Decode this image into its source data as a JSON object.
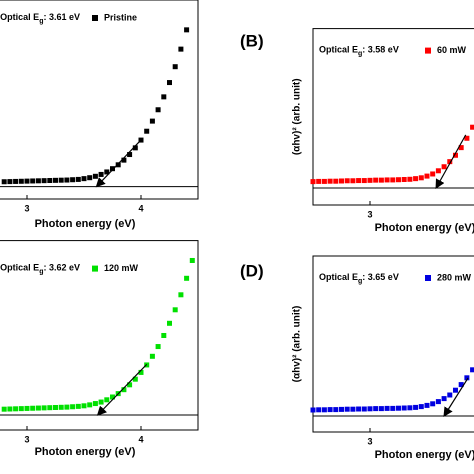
{
  "chart_data": [
    {
      "type": "scatter",
      "annotation": {
        "text": "Optical E",
        "sub": "g",
        "rest": ": 3.61 eV"
      },
      "xlabel": "Photon energy (eV)",
      "xlim": [
        2.75,
        4.5
      ],
      "ylim": [
        -8,
        120
      ],
      "xticks": [
        3,
        4
      ],
      "hline": 0,
      "series": [
        {
          "name": "Pristine",
          "color": "#000000",
          "x": [
            2.8,
            2.85,
            2.9,
            2.95,
            3.0,
            3.05,
            3.1,
            3.15,
            3.2,
            3.25,
            3.3,
            3.35,
            3.4,
            3.45,
            3.5,
            3.55,
            3.6,
            3.65,
            3.7,
            3.75,
            3.8,
            3.85,
            3.9,
            3.95,
            4.0,
            4.05,
            4.1,
            4.15,
            4.2,
            4.25,
            4.3,
            4.35,
            4.4
          ],
          "values": [
            3.1,
            3.2,
            3.3,
            3.4,
            3.5,
            3.6,
            3.7,
            3.8,
            3.9,
            4.0,
            4.1,
            4.2,
            4.4,
            4.6,
            5.1,
            5.7,
            6.6,
            7.8,
            9.4,
            11.5,
            14.0,
            17.0,
            20.6,
            24.9,
            29.9,
            35.6,
            42.1,
            49.4,
            57.7,
            66.9,
            77.1,
            88.4,
            100.8
          ]
        }
      ],
      "arrow": {
        "x": [
          4.0,
          3.61
        ],
        "y": [
          30,
          0
        ]
      }
    },
    {
      "type": "scatter",
      "panel": "(B)",
      "annotation": {
        "text": "Optical E",
        "sub": "g",
        "rest": ": 3.58 eV"
      },
      "xlabel": "Photon energy (eV)",
      "ylabel": "(αhv)² (arb. unit)",
      "xlim": [
        2.5,
        3.93
      ],
      "ylim": [
        -8,
        75
      ],
      "xticks": [
        3
      ],
      "hline": 0,
      "series": [
        {
          "name": "60 mW",
          "color": "#ff0000",
          "x": [
            2.5,
            2.55,
            2.6,
            2.65,
            2.7,
            2.75,
            2.8,
            2.85,
            2.9,
            2.95,
            3.0,
            3.05,
            3.1,
            3.15,
            3.2,
            3.25,
            3.3,
            3.35,
            3.4,
            3.45,
            3.5,
            3.55,
            3.6,
            3.65,
            3.7,
            3.75,
            3.8,
            3.85,
            3.9
          ],
          "values": [
            3.0,
            3.1,
            3.1,
            3.2,
            3.2,
            3.3,
            3.4,
            3.4,
            3.5,
            3.5,
            3.6,
            3.7,
            3.7,
            3.8,
            3.8,
            3.9,
            4.0,
            4.1,
            4.4,
            4.8,
            5.6,
            6.6,
            8.1,
            10.0,
            12.4,
            15.4,
            19.0,
            23.4,
            28.6
          ]
        }
      ],
      "arrow": {
        "x": [
          3.84,
          3.58
        ],
        "y": [
          25,
          0
        ]
      }
    },
    {
      "type": "scatter",
      "annotation": {
        "text": "Optical E",
        "sub": "g",
        "rest": ": 3.62 eV"
      },
      "xlabel": "Photon energy (eV)",
      "xlim": [
        2.75,
        4.5
      ],
      "ylim": [
        -8,
        93
      ],
      "xticks": [
        3,
        4
      ],
      "hline": 0,
      "series": [
        {
          "name": "120 mW",
          "color": "#00e000",
          "x": [
            2.8,
            2.85,
            2.9,
            2.95,
            3.0,
            3.05,
            3.1,
            3.15,
            3.2,
            3.25,
            3.3,
            3.35,
            3.4,
            3.45,
            3.5,
            3.55,
            3.6,
            3.65,
            3.7,
            3.75,
            3.8,
            3.85,
            3.9,
            3.95,
            4.0,
            4.05,
            4.1,
            4.15,
            4.2,
            4.25,
            4.3,
            4.35,
            4.4,
            4.45
          ],
          "values": [
            3.1,
            3.2,
            3.3,
            3.4,
            3.5,
            3.6,
            3.7,
            3.8,
            3.9,
            4.0,
            4.1,
            4.2,
            4.4,
            4.6,
            4.9,
            5.4,
            6.1,
            6.9,
            8.1,
            9.6,
            11.4,
            13.5,
            16.1,
            19.1,
            22.7,
            26.7,
            31.3,
            36.5,
            42.4,
            48.9,
            56.1,
            64.1,
            72.9,
            82.4
          ]
        }
      ],
      "arrow": {
        "x": [
          4.05,
          3.62
        ],
        "y": [
          27,
          0
        ]
      }
    },
    {
      "type": "scatter",
      "panel": "(D)",
      "annotation": {
        "text": "Optical E",
        "sub": "g",
        "rest": ": 3.65 eV"
      },
      "xlabel": "Photon energy (eV)",
      "ylabel": "(αhv)² (arb. unit)",
      "xlim": [
        2.5,
        3.93
      ],
      "ylim": [
        -8,
        80
      ],
      "xticks": [
        3
      ],
      "hline": 0,
      "series": [
        {
          "name": "280 mW",
          "color": "#0000e0",
          "x": [
            2.5,
            2.55,
            2.6,
            2.65,
            2.7,
            2.75,
            2.8,
            2.85,
            2.9,
            2.95,
            3.0,
            3.05,
            3.1,
            3.15,
            3.2,
            3.25,
            3.3,
            3.35,
            3.4,
            3.45,
            3.5,
            3.55,
            3.6,
            3.65,
            3.7,
            3.75,
            3.8,
            3.85,
            3.9
          ],
          "values": [
            3.0,
            3.1,
            3.1,
            3.2,
            3.2,
            3.3,
            3.4,
            3.4,
            3.5,
            3.5,
            3.6,
            3.7,
            3.7,
            3.8,
            3.8,
            3.9,
            4.0,
            4.1,
            4.3,
            4.7,
            5.3,
            6.1,
            7.2,
            8.7,
            10.5,
            12.9,
            15.7,
            19.1,
            23.1
          ]
        }
      ],
      "arrow": {
        "x": [
          3.86,
          3.65
        ],
        "y": [
          19,
          0
        ]
      }
    }
  ]
}
